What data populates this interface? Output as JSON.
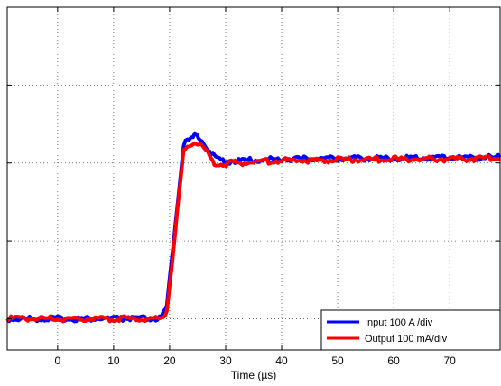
{
  "chart_data": {
    "type": "line",
    "title": "",
    "xlabel": "Time (µs)",
    "ylabel": "",
    "xlim": [
      -9,
      79
    ],
    "ylim": [
      -0.4,
      4.0
    ],
    "xticks": [
      0,
      10,
      20,
      30,
      40,
      50,
      60,
      70
    ],
    "x_tick_labels": [
      "0",
      "10",
      "20",
      "30",
      "40",
      "50",
      "60",
      "70"
    ],
    "yticks": [
      0,
      1,
      2,
      3,
      4
    ],
    "grid": true,
    "legend_position": "bottom-right",
    "series": [
      {
        "name": "Input 100 A /div",
        "color": "#0000ff",
        "x": [
          -9,
          0,
          10,
          18.5,
          19.5,
          21,
          22.5,
          23.5,
          24.5,
          25.5,
          26.5,
          28,
          29.5,
          31,
          33,
          36,
          40,
          50,
          60,
          70,
          79
        ],
        "y": [
          0,
          0,
          0,
          0,
          0.15,
          1.2,
          2.25,
          2.28,
          2.35,
          2.32,
          2.22,
          2.07,
          2.03,
          2.02,
          2.03,
          2.04,
          2.05,
          2.06,
          2.06,
          2.07,
          2.07
        ]
      },
      {
        "name": "Output 100 mA/div",
        "color": "#ff0000",
        "x": [
          -9,
          0,
          10,
          18.5,
          19.5,
          21,
          22.5,
          23.5,
          24.5,
          25.5,
          26.5,
          28,
          29.5,
          31,
          33,
          36,
          40,
          50,
          60,
          70,
          79
        ],
        "y": [
          0,
          0,
          0,
          0,
          0.1,
          1.1,
          2.15,
          2.22,
          2.28,
          2.25,
          2.15,
          2.0,
          1.98,
          2.0,
          2.0,
          2.02,
          2.03,
          2.04,
          2.05,
          2.05,
          2.06
        ]
      }
    ]
  }
}
